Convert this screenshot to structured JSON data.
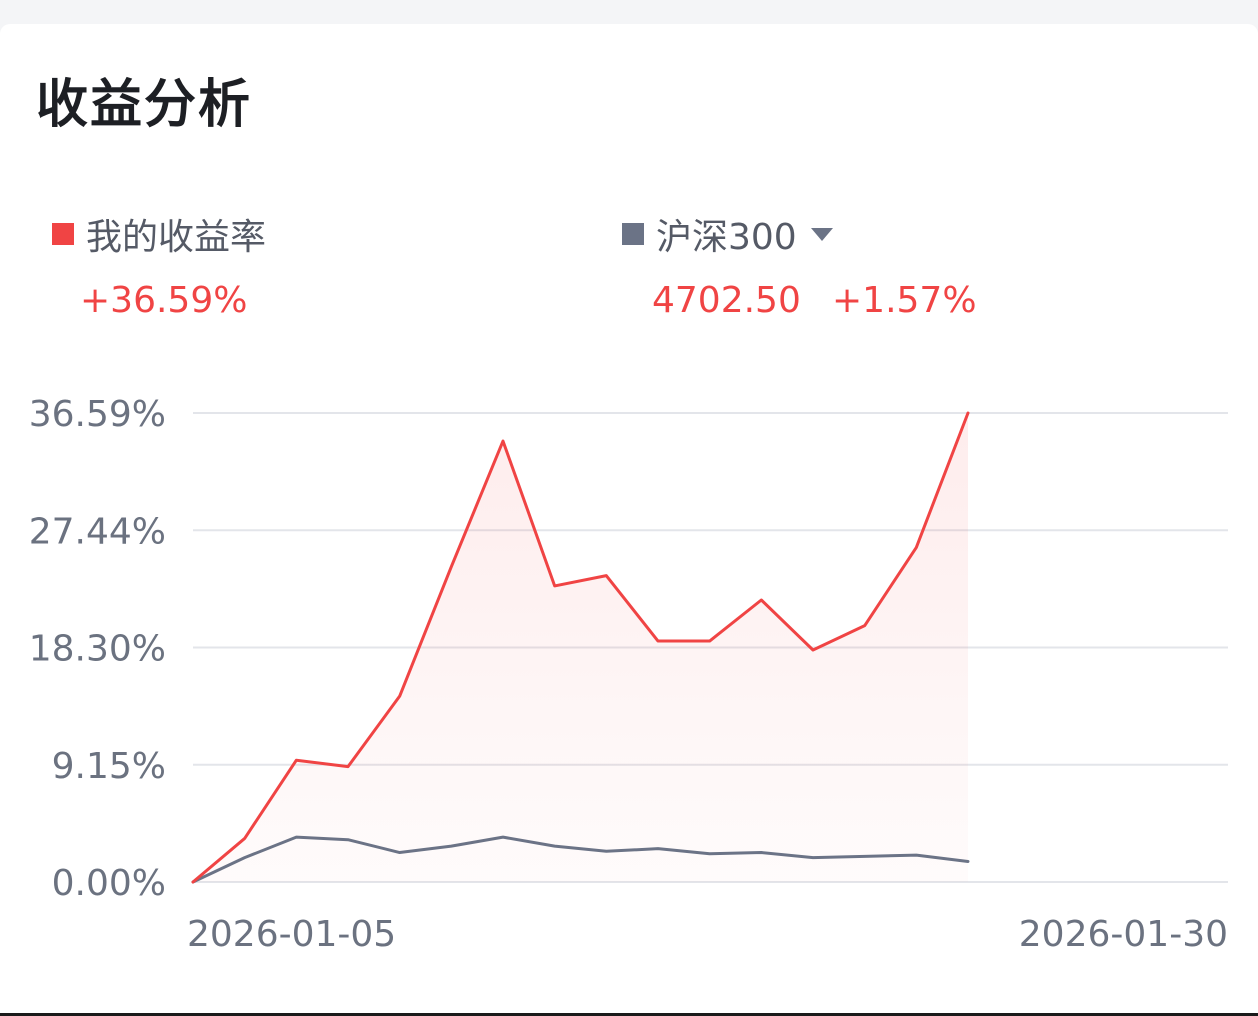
{
  "title": "收益分析",
  "legend": {
    "mine": {
      "label": "我的收益率",
      "color": "#f04444",
      "value": "+36.59%"
    },
    "benchmark": {
      "label": "沪深300",
      "color": "#6b7386",
      "index_value": "4702.50",
      "change": "+1.57%",
      "has_dropdown": true
    }
  },
  "chart_data": {
    "type": "line",
    "x_start": "2026-01-05",
    "x_end": "2026-01-30",
    "x_tick_labels": [
      "2026-01-05",
      "2026-01-30"
    ],
    "y_tick_labels": [
      "36.59%",
      "27.44%",
      "18.30%",
      "9.15%",
      "0.00%"
    ],
    "ylim": [
      0,
      36.59
    ],
    "grid": true,
    "area_fill_series": "我的收益率",
    "x": [
      "2026-01-05",
      "2026-01-06",
      "2026-01-07",
      "2026-01-08",
      "2026-01-09",
      "2026-01-12",
      "2026-01-13",
      "2026-01-14",
      "2026-01-15",
      "2026-01-16",
      "2026-01-19",
      "2026-01-20",
      "2026-01-21",
      "2026-01-22",
      "2026-01-23",
      "2026-01-26"
    ],
    "series": [
      {
        "name": "我的收益率",
        "color": "#f04444",
        "values": [
          0.0,
          3.4,
          9.5,
          9.0,
          14.5,
          24.6,
          34.4,
          23.1,
          23.9,
          18.8,
          18.8,
          22.0,
          18.1,
          20.0,
          26.1,
          36.59
        ]
      },
      {
        "name": "沪深300",
        "color": "#6b7386",
        "values": [
          0.0,
          1.9,
          3.5,
          3.3,
          2.3,
          2.8,
          3.5,
          2.8,
          2.4,
          2.6,
          2.2,
          2.3,
          1.9,
          2.0,
          2.1,
          1.6
        ]
      }
    ]
  }
}
